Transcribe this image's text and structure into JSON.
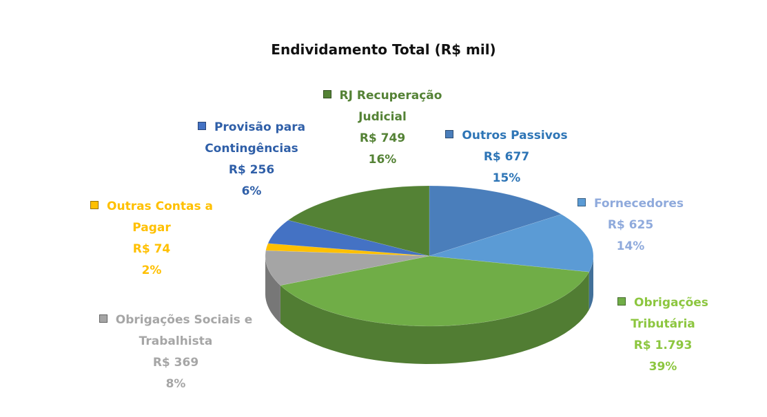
{
  "chart_data": {
    "type": "pie3d",
    "title": "Endividamento Total (R$ mil)",
    "categories": [
      "Outros Passivos",
      "Fornecedores",
      "Obrigações Tributária",
      "Obrigações Sociais e Trabalhista",
      "Outras Contas a Pagar",
      "Provisão para Contingências",
      "RJ Recuperação Judicial"
    ],
    "values": [
      677,
      625,
      1793,
      369,
      74,
      256,
      749
    ],
    "value_labels": [
      "R$ 677",
      "R$ 625",
      "R$ 1.793",
      "R$ 369",
      "R$ 74",
      "R$ 256",
      "R$ 749"
    ],
    "percents": [
      15,
      14,
      39,
      8,
      2,
      6,
      16
    ],
    "percent_labels": [
      "15%",
      "14%",
      "39%",
      "8%",
      "2%",
      "6%",
      "16%"
    ],
    "colors": [
      "#4a7ebb",
      "#5b9bd5",
      "#70ad47",
      "#a5a5a5",
      "#ffc000",
      "#4472c4",
      "#548235"
    ],
    "label_colors": [
      "#2e75b6",
      "#8faadc",
      "#8cc63f",
      "#a6a6a6",
      "#ffc000",
      "#2f5fa8",
      "#548235"
    ]
  }
}
